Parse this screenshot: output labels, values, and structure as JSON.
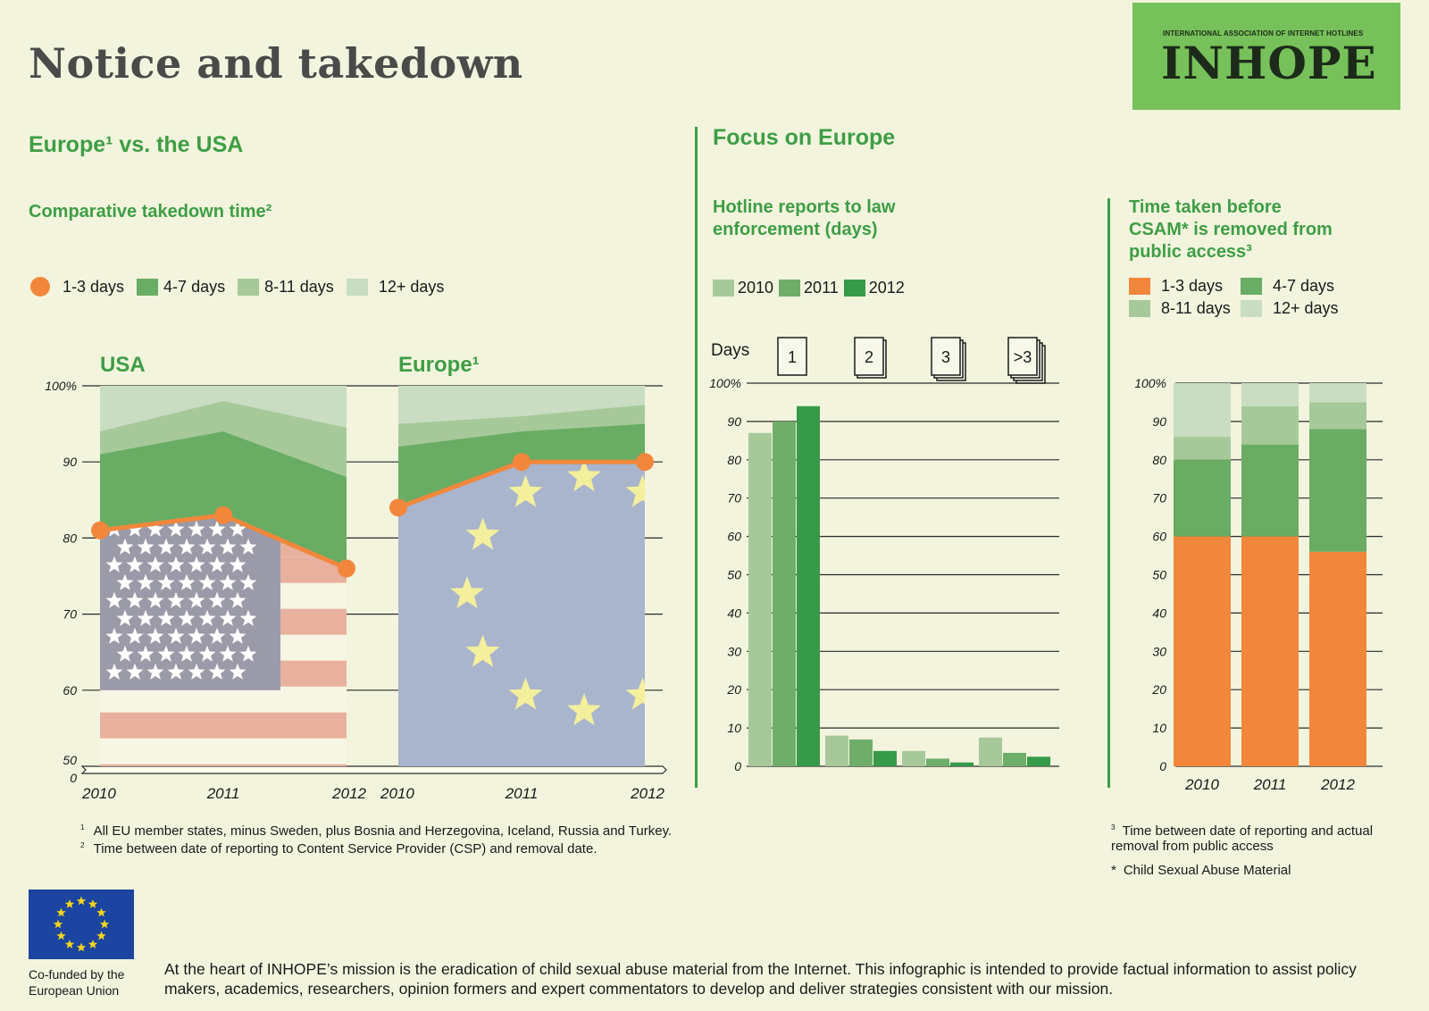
{
  "header": {
    "title": "Notice and takedown",
    "logo_small": "INTERNATIONAL ASSOCIATION OF INTERNET HOTLINES",
    "logo_big": "INHOPE"
  },
  "left": {
    "section_title": "Europe¹ vs. the USA",
    "subtitle": "Comparative takedown time²",
    "legend": [
      "1-3 days",
      "4-7 days",
      "8-11 days",
      "12+ days"
    ],
    "panel_usa": "USA",
    "panel_europe": "Europe¹"
  },
  "middle": {
    "section_title": "Focus on Europe",
    "subtitle": "Hotline reports to law enforcement (days)",
    "legend": [
      "2010",
      "2011",
      "2012"
    ],
    "days_label": "Days",
    "day_buckets": [
      "1",
      "2",
      "3",
      ">3"
    ]
  },
  "right": {
    "subtitle": "Time taken before CSAM* is removed from public access³",
    "legend": [
      "1-3 days",
      "4-7 days",
      "8-11 days",
      "12+ days"
    ]
  },
  "footnotes": {
    "note1": "All EU member states, minus Sweden, plus Bosnia and Herzegovina, Iceland, Russia and Turkey.",
    "note2": "Time between date of reporting to Content Service Provider (CSP) and removal date.",
    "note3": "Time between date of reporting and actual removal from public access",
    "note_star": "Child Sexual Abuse Material"
  },
  "bottom": {
    "cofunded": "Co-funded by the European Union",
    "mission": "At the heart of INHOPE’s mission is the eradication of child sexual abuse material from the Internet. This infographic is intended to provide factual information to assist policy makers, academics, researchers, opinion formers and expert commentators to develop and deliver strategies consistent with our mission."
  },
  "colors": {
    "orange": "#f2873c",
    "green_4_7": "#68ad63",
    "green_8_11": "#a7c99a",
    "green_12": "#c8ddc1",
    "bar_2010": "#a7c99a",
    "bar_2011": "#6eae6a",
    "bar_2012": "#369a48"
  },
  "chart_data": [
    {
      "type": "area",
      "title": "USA",
      "x": [
        "2010",
        "2011",
        "2012"
      ],
      "ylim": [
        50,
        100
      ],
      "yticks": [
        "100%",
        "90",
        "80",
        "70",
        "60",
        "50"
      ],
      "series": [
        {
          "name": "1-3 days",
          "values": [
            81,
            83,
            76
          ]
        },
        {
          "name": "4-7 days",
          "values": [
            91,
            94,
            88
          ]
        },
        {
          "name": "8-11 days",
          "values": [
            94,
            98,
            94.5
          ]
        },
        {
          "name": "12+ days",
          "values": [
            100,
            100,
            100
          ]
        }
      ]
    },
    {
      "type": "area",
      "title": "Europe¹",
      "x": [
        "2010",
        "2011",
        "2012"
      ],
      "ylim": [
        50,
        100
      ],
      "yticks": [
        "100%",
        "90",
        "80",
        "70",
        "60",
        "50"
      ],
      "series": [
        {
          "name": "1-3 days",
          "values": [
            84,
            90,
            90
          ]
        },
        {
          "name": "4-7 days",
          "values": [
            92,
            94,
            95
          ]
        },
        {
          "name": "8-11 days",
          "values": [
            95,
            96,
            97.5
          ]
        },
        {
          "name": "12+ days",
          "values": [
            100,
            100,
            100
          ]
        }
      ]
    },
    {
      "type": "bar",
      "title": "Hotline reports to law enforcement (days)",
      "categories": [
        "1",
        "2",
        "3",
        ">3"
      ],
      "ylim": [
        0,
        100
      ],
      "yticks": [
        "100%",
        "90",
        "80",
        "70",
        "60",
        "50",
        "40",
        "30",
        "20",
        "10",
        "0"
      ],
      "series": [
        {
          "name": "2010",
          "values": [
            87,
            8,
            4,
            7.5
          ]
        },
        {
          "name": "2011",
          "values": [
            90,
            7,
            2,
            3.5
          ]
        },
        {
          "name": "2012",
          "values": [
            94,
            4,
            1,
            2.5
          ]
        }
      ]
    },
    {
      "type": "bar",
      "title": "Time taken before CSAM* is removed from public access³",
      "stacked": true,
      "categories": [
        "2010",
        "2011",
        "2012"
      ],
      "ylim": [
        0,
        100
      ],
      "yticks": [
        "100%",
        "90",
        "80",
        "70",
        "60",
        "50",
        "40",
        "30",
        "20",
        "10",
        "0"
      ],
      "series": [
        {
          "name": "1-3 days",
          "values": [
            60,
            60,
            56
          ]
        },
        {
          "name": "4-7 days",
          "values": [
            20,
            24,
            32
          ]
        },
        {
          "name": "8-11 days",
          "values": [
            6,
            10,
            7
          ]
        },
        {
          "name": "12+ days",
          "values": [
            14,
            6,
            5
          ]
        }
      ]
    }
  ]
}
